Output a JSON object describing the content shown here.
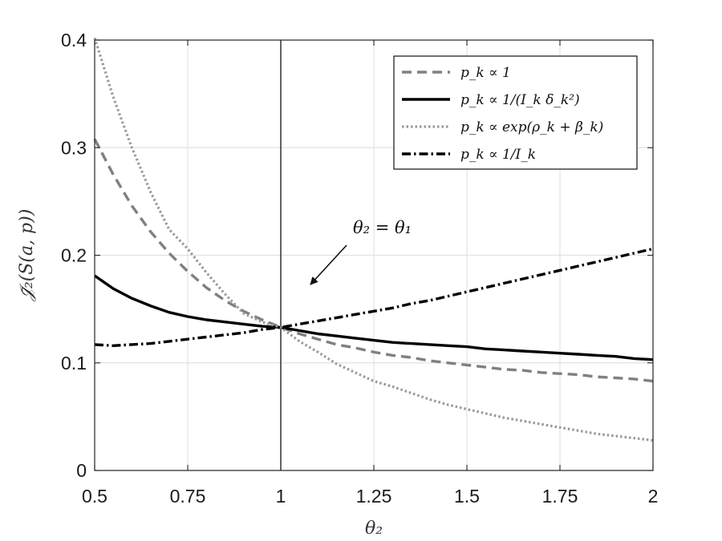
{
  "chart_data": {
    "type": "line",
    "xlabel": "θ₂",
    "ylabel": "𝒥̄₂(S(a, p))",
    "xlim": [
      0.5,
      2
    ],
    "ylim": [
      0,
      0.4
    ],
    "xticks": [
      0.5,
      0.75,
      1,
      1.25,
      1.5,
      1.75,
      2
    ],
    "xtick_labels": [
      "0.5",
      "0.75",
      "1",
      "1.25",
      "1.5",
      "1.75",
      "2"
    ],
    "yticks": [
      0,
      0.1,
      0.2,
      0.3,
      0.4
    ],
    "ytick_labels": [
      "0",
      "0.1",
      "0.2",
      "0.3",
      "0.4"
    ],
    "grid": true,
    "legend_position": "top-right",
    "vertical_line_x": 1,
    "annotation": {
      "text": "θ₂ = θ₁",
      "points_to": [
        1.0,
        0.133
      ]
    },
    "x": [
      0.5,
      0.55,
      0.6,
      0.65,
      0.7,
      0.75,
      0.8,
      0.85,
      0.9,
      0.95,
      1.0,
      1.05,
      1.1,
      1.15,
      1.2,
      1.25,
      1.3,
      1.35,
      1.4,
      1.45,
      1.5,
      1.55,
      1.6,
      1.65,
      1.7,
      1.75,
      1.8,
      1.85,
      1.9,
      1.95,
      2.0
    ],
    "series": [
      {
        "name": "p_k ∝ 1",
        "color": "#808080",
        "style": "dashed",
        "values": [
          0.308,
          0.275,
          0.246,
          0.222,
          0.202,
          0.185,
          0.17,
          0.158,
          0.148,
          0.14,
          0.133,
          0.127,
          0.122,
          0.117,
          0.114,
          0.11,
          0.107,
          0.105,
          0.102,
          0.1,
          0.098,
          0.096,
          0.094,
          0.093,
          0.091,
          0.09,
          0.089,
          0.087,
          0.086,
          0.085,
          0.083
        ]
      },
      {
        "name": "p_k ∝ 1/(I_k δ_k²)",
        "color": "#000000",
        "style": "solid",
        "values": [
          0.181,
          0.169,
          0.16,
          0.153,
          0.147,
          0.143,
          0.14,
          0.138,
          0.136,
          0.134,
          0.133,
          0.13,
          0.127,
          0.125,
          0.123,
          0.121,
          0.119,
          0.118,
          0.117,
          0.116,
          0.115,
          0.113,
          0.112,
          0.111,
          0.11,
          0.109,
          0.108,
          0.107,
          0.106,
          0.104,
          0.103
        ]
      },
      {
        "name": "p_k ∝ exp(ρ_k + β_k)",
        "color": "#999999",
        "style": "dotted",
        "values": [
          0.402,
          0.347,
          0.3,
          0.259,
          0.224,
          0.206,
          0.184,
          0.164,
          0.146,
          0.138,
          0.133,
          0.12,
          0.11,
          0.099,
          0.091,
          0.083,
          0.078,
          0.072,
          0.066,
          0.061,
          0.057,
          0.053,
          0.049,
          0.046,
          0.043,
          0.04,
          0.037,
          0.034,
          0.032,
          0.03,
          0.028
        ]
      },
      {
        "name": "p_k ∝ 1/I_k",
        "color": "#000000",
        "style": "dashdot",
        "values": [
          0.117,
          0.116,
          0.117,
          0.118,
          0.12,
          0.122,
          0.124,
          0.126,
          0.128,
          0.131,
          0.133,
          0.136,
          0.139,
          0.142,
          0.145,
          0.148,
          0.151,
          0.155,
          0.158,
          0.162,
          0.166,
          0.17,
          0.174,
          0.178,
          0.182,
          0.186,
          0.19,
          0.194,
          0.198,
          0.202,
          0.206
        ]
      }
    ]
  }
}
